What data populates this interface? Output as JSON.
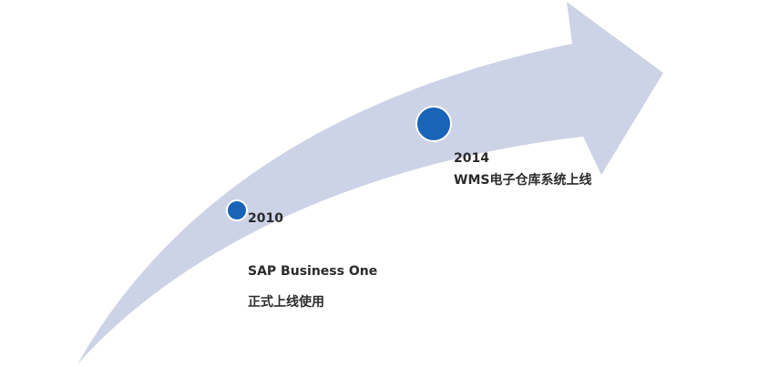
{
  "colors": {
    "arrow": "#cdd3e6",
    "dot": "#1a64b8",
    "text": "#2b2b2b"
  },
  "milestones": [
    {
      "year": "2010",
      "line1": "SAP Business One",
      "line2": "正式上线使用"
    },
    {
      "year": "2014",
      "line1": "WMS电子仓库系统上线"
    }
  ]
}
